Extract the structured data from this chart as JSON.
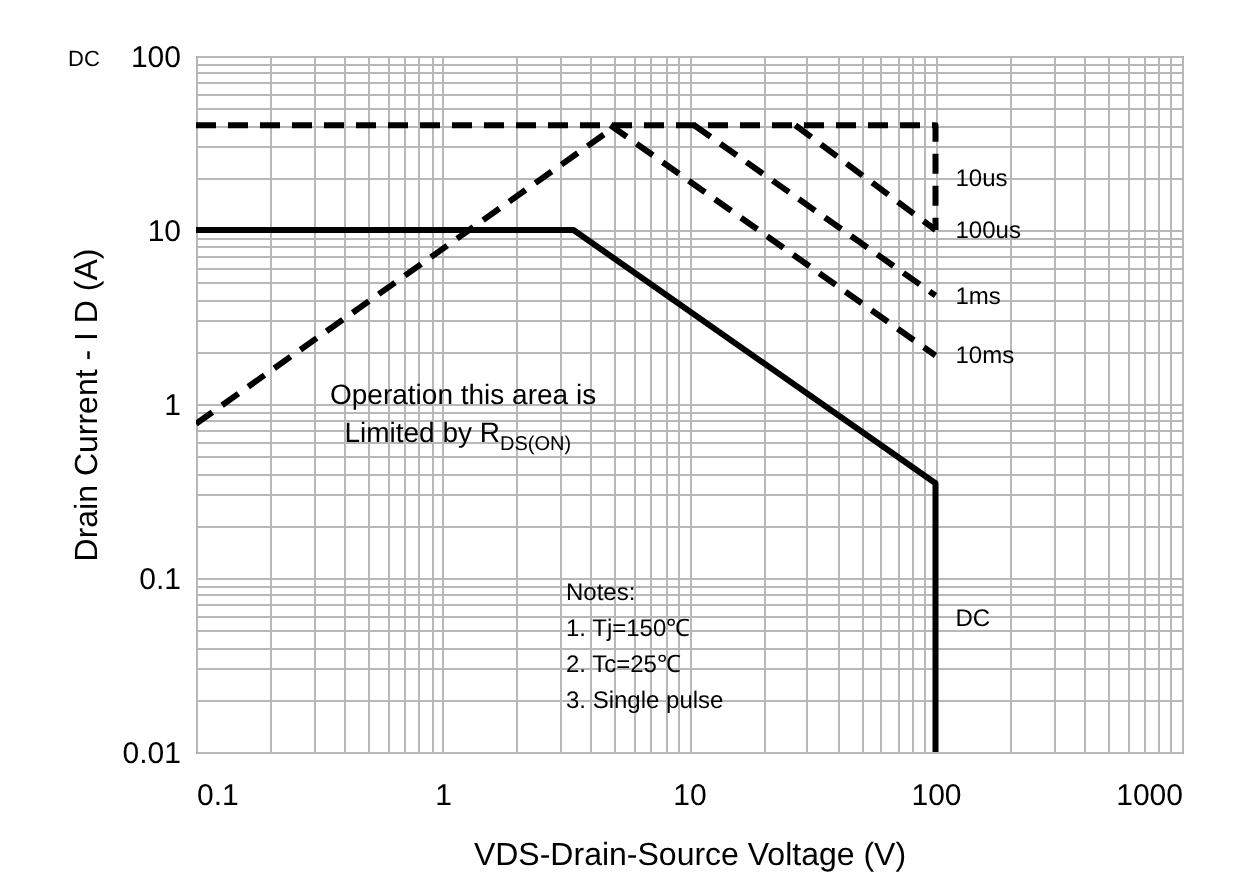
{
  "chart_data": {
    "type": "line",
    "xlabel": "VDS-Drain-Source Voltage (V)",
    "ylabel": "Drain Current - I D (A)",
    "log": "xy",
    "grid": true,
    "marker": "none",
    "xlim": [
      0.1,
      1000
    ],
    "ylim": [
      0.01,
      100
    ],
    "xticks": [
      0.1,
      {
        "value": 0.2,
        "label": null
      },
      {
        "value": 0.3,
        "label": null
      },
      {
        "value": 0.4,
        "label": null
      },
      {
        "value": 0.5,
        "label": null
      },
      {
        "value": 0.6,
        "label": null
      },
      {
        "value": 0.7,
        "label": null
      },
      {
        "value": 0.8,
        "label": null
      },
      {
        "value": 0.9,
        "label": null
      },
      1,
      {
        "value": 2,
        "label": null
      },
      {
        "value": 3,
        "label": null
      },
      {
        "value": 4,
        "label": null
      },
      {
        "value": 5,
        "label": null
      },
      {
        "value": 6,
        "label": null
      },
      {
        "value": 7,
        "label": null
      },
      {
        "value": 8,
        "label": null
      },
      {
        "value": 9,
        "label": null
      },
      10,
      {
        "value": 20,
        "label": null
      },
      {
        "value": 30,
        "label": null
      },
      {
        "value": 40,
        "label": null
      },
      {
        "value": 50,
        "label": null
      },
      {
        "value": 60,
        "label": null
      },
      {
        "value": 70,
        "label": null
      },
      {
        "value": 80,
        "label": null
      },
      {
        "value": 90,
        "label": null
      },
      100,
      {
        "value": 200,
        "label": null
      },
      {
        "value": 300,
        "label": null
      },
      {
        "value": 400,
        "label": null
      },
      {
        "value": 500,
        "label": null
      },
      {
        "value": 600,
        "label": null
      },
      {
        "value": 700,
        "label": null
      },
      {
        "value": 800,
        "label": null
      },
      {
        "value": 900,
        "label": null
      },
      1000
    ],
    "yticks": [
      0.01,
      {
        "value": 0.02,
        "label": null
      },
      {
        "value": 0.03,
        "label": null
      },
      {
        "value": 0.04,
        "label": null
      },
      {
        "value": 0.05,
        "label": null
      },
      {
        "value": 0.06,
        "label": null
      },
      {
        "value": 0.07,
        "label": null
      },
      {
        "value": 0.08,
        "label": null
      },
      {
        "value": 0.09,
        "label": null
      },
      0.1,
      {
        "value": 0.2,
        "label": null
      },
      {
        "value": 0.3,
        "label": null
      },
      {
        "value": 0.4,
        "label": null
      },
      {
        "value": 0.5,
        "label": null
      },
      {
        "value": 0.6,
        "label": null
      },
      {
        "value": 0.7,
        "label": null
      },
      {
        "value": 0.8,
        "label": null
      },
      {
        "value": 0.9,
        "label": null
      },
      1,
      {
        "value": 2,
        "label": null
      },
      {
        "value": 3,
        "label": null
      },
      {
        "value": 4,
        "label": null
      },
      {
        "value": 5,
        "label": null
      },
      {
        "value": 6,
        "label": null
      },
      {
        "value": 7,
        "label": null
      },
      {
        "value": 8,
        "label": null
      },
      {
        "value": 9,
        "label": null
      },
      10,
      {
        "value": 20,
        "label": null
      },
      {
        "value": 30,
        "label": null
      },
      {
        "value": 40,
        "label": null
      },
      {
        "value": 50,
        "label": null
      },
      {
        "value": 60,
        "label": null
      },
      {
        "value": 70,
        "label": null
      },
      {
        "value": 80,
        "label": null
      },
      {
        "value": 90,
        "label": null
      },
      100
    ],
    "series": [
      {
        "name": "DC",
        "color": "#000000",
        "line_style": "solid",
        "x": [
          0.1,
          3.4,
          100,
          100
        ],
        "values": [
          10,
          10,
          0.35,
          0.01
        ]
      },
      {
        "color": "#000000",
        "line_style": "dashed",
        "x": [
          0.1,
          5.1
        ],
        "values": [
          0.77,
          40
        ]
      },
      {
        "name": "10us",
        "color": "#000000",
        "line_style": "dashed",
        "x": [
          0.1,
          100,
          100
        ],
        "values": [
          40,
          40,
          10
        ]
      },
      {
        "name": "100us",
        "color": "#000000",
        "line_style": "dashed",
        "x": [
          27,
          100
        ],
        "values": [
          40,
          10
        ]
      },
      {
        "name": "1ms",
        "color": "#000000",
        "line_style": "dashed",
        "x": [
          10.5,
          100
        ],
        "values": [
          40,
          4.2
        ]
      },
      {
        "name": "10ms",
        "color": "#000000",
        "line_style": "dashed",
        "x": [
          4.8,
          100
        ],
        "values": [
          40,
          1.9
        ]
      }
    ],
    "annotations": [
      "DC",
      "Operation this area is",
      "Limited  by R$_{DS(ON)}$",
      "Notes:",
      "1. Tj=150℃",
      "2. Tc=25℃",
      "3. Single pulse"
    ]
  }
}
